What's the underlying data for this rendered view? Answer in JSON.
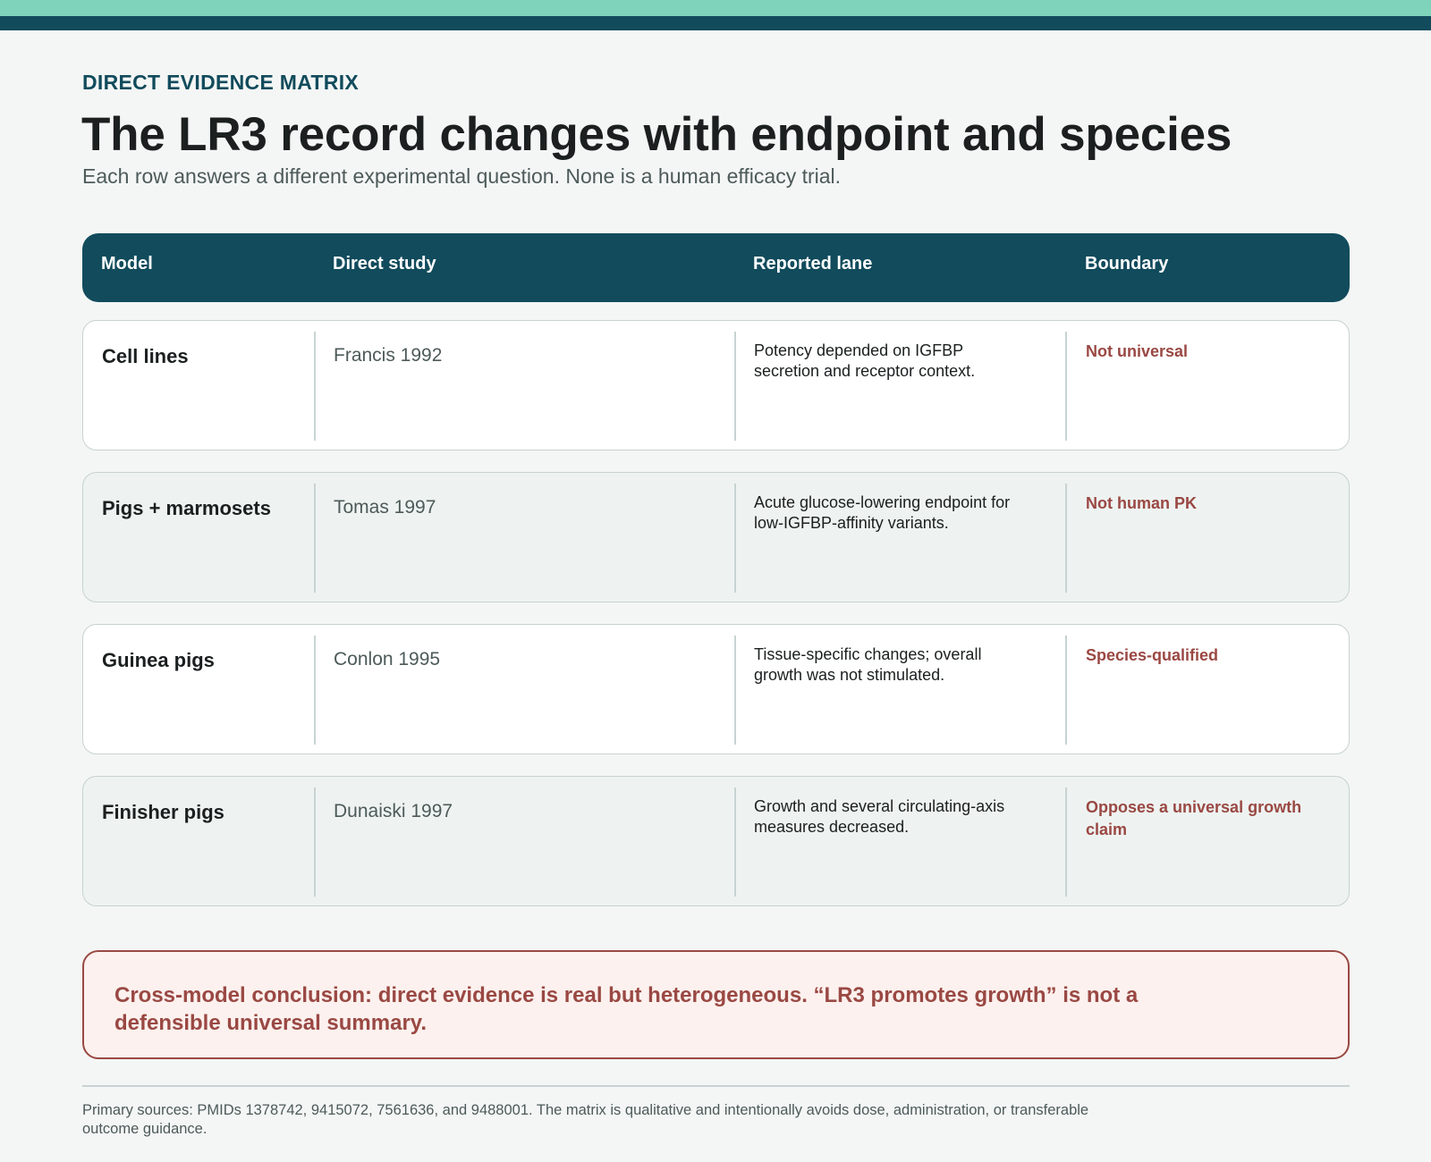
{
  "header": {
    "eyebrow": "DIRECT EVIDENCE MATRIX",
    "title": "The LR3 record changes with endpoint and species",
    "subtitle": "Each row answers a different experimental question. None is a human efficacy trial."
  },
  "table": {
    "columns": [
      "Model",
      "Direct study",
      "Reported lane",
      "Boundary"
    ],
    "rows": [
      {
        "model": "Cell lines",
        "study": "Francis 1992",
        "lane": "Potency depended on IGFBP secretion and receptor context.",
        "boundary": "Not universal"
      },
      {
        "model": "Pigs + marmosets",
        "study": "Tomas 1997",
        "lane": "Acute glucose-lowering endpoint for low-IGFBP-affinity variants.",
        "boundary": "Not human PK"
      },
      {
        "model": "Guinea pigs",
        "study": "Conlon 1995",
        "lane": "Tissue-specific changes; overall growth was not stimulated.",
        "boundary": "Species-qualified"
      },
      {
        "model": "Finisher pigs",
        "study": "Dunaiski 1997",
        "lane": "Growth and several circulating-axis measures decreased.",
        "boundary": "Opposes a universal growth claim"
      }
    ]
  },
  "conclusion": "Cross-model conclusion: direct evidence is real but heterogeneous. “LR3 promotes growth” is not a defensible universal summary.",
  "footer": "Primary sources: PMIDs 1378742, 9415072, 7561636, and 9488001. The matrix is qualitative and intentionally avoids dose, administration, or transferable outcome guidance.",
  "colors": {
    "brand_dark": "#114b5c",
    "accent_mint": "#7fd3bb",
    "warning_red": "#9a4843",
    "warning_bg": "#fcf1ee",
    "row_tint": "#eef3f1"
  }
}
